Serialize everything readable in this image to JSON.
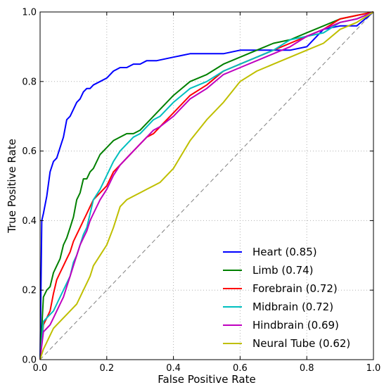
{
  "chart_data": {
    "type": "line",
    "title": "",
    "xlabel": "False Positive Rate",
    "ylabel": "True Positive Rate",
    "xlim": [
      0.0,
      1.0
    ],
    "ylim": [
      0.0,
      1.0
    ],
    "grid": true,
    "grid_style": "dotted",
    "legend_position": "lower-right",
    "x_ticks": [
      {
        "value": 0.0,
        "label": "0.0"
      },
      {
        "value": 0.2,
        "label": "0.2"
      },
      {
        "value": 0.4,
        "label": "0.4"
      },
      {
        "value": 0.6,
        "label": "0.6"
      },
      {
        "value": 0.8,
        "label": "0.8"
      },
      {
        "value": 1.0,
        "label": "1.0"
      }
    ],
    "y_ticks": [
      {
        "value": 0.0,
        "label": "0.0"
      },
      {
        "value": 0.2,
        "label": "0.2"
      },
      {
        "value": 0.4,
        "label": "0.4"
      },
      {
        "value": 0.6,
        "label": "0.6"
      },
      {
        "value": 0.8,
        "label": "0.8"
      },
      {
        "value": 1.0,
        "label": "1.0"
      }
    ],
    "reference_line": {
      "x": [
        0,
        1
      ],
      "y": [
        0,
        1
      ],
      "color": "#808080",
      "style": "dashed"
    },
    "series": [
      {
        "name": "Heart (0.85)",
        "color": "#0000ff",
        "x": [
          0,
          0.005,
          0.01,
          0.02,
          0.03,
          0.04,
          0.05,
          0.06,
          0.07,
          0.08,
          0.09,
          0.1,
          0.11,
          0.12,
          0.13,
          0.14,
          0.15,
          0.16,
          0.18,
          0.2,
          0.22,
          0.24,
          0.26,
          0.28,
          0.3,
          0.32,
          0.35,
          0.4,
          0.45,
          0.5,
          0.55,
          0.6,
          0.65,
          0.7,
          0.75,
          0.8,
          0.85,
          0.9,
          0.95,
          1.0
        ],
        "y": [
          0,
          0.4,
          0.42,
          0.47,
          0.54,
          0.57,
          0.58,
          0.61,
          0.64,
          0.69,
          0.7,
          0.72,
          0.74,
          0.75,
          0.77,
          0.78,
          0.78,
          0.79,
          0.8,
          0.81,
          0.83,
          0.84,
          0.84,
          0.85,
          0.85,
          0.86,
          0.86,
          0.87,
          0.88,
          0.88,
          0.88,
          0.89,
          0.89,
          0.89,
          0.89,
          0.9,
          0.95,
          0.96,
          0.96,
          1.0
        ]
      },
      {
        "name": "Limb (0.74)",
        "color": "#008000",
        "x": [
          0,
          0.01,
          0.02,
          0.03,
          0.04,
          0.05,
          0.06,
          0.07,
          0.08,
          0.09,
          0.1,
          0.11,
          0.12,
          0.13,
          0.14,
          0.15,
          0.16,
          0.18,
          0.2,
          0.22,
          0.24,
          0.26,
          0.28,
          0.3,
          0.32,
          0.34,
          0.36,
          0.4,
          0.45,
          0.5,
          0.55,
          0.6,
          0.65,
          0.7,
          0.75,
          0.8,
          0.85,
          0.9,
          0.95,
          1.0
        ],
        "y": [
          0,
          0.18,
          0.2,
          0.21,
          0.25,
          0.27,
          0.29,
          0.33,
          0.35,
          0.38,
          0.41,
          0.46,
          0.48,
          0.52,
          0.52,
          0.54,
          0.55,
          0.59,
          0.61,
          0.63,
          0.64,
          0.65,
          0.65,
          0.66,
          0.68,
          0.7,
          0.72,
          0.76,
          0.8,
          0.82,
          0.85,
          0.87,
          0.89,
          0.91,
          0.92,
          0.94,
          0.96,
          0.98,
          0.99,
          1.0
        ]
      },
      {
        "name": "Forebrain (0.72)",
        "color": "#ff0000",
        "x": [
          0,
          0.01,
          0.02,
          0.03,
          0.04,
          0.05,
          0.06,
          0.07,
          0.08,
          0.09,
          0.1,
          0.11,
          0.12,
          0.13,
          0.14,
          0.15,
          0.16,
          0.18,
          0.2,
          0.22,
          0.24,
          0.26,
          0.28,
          0.3,
          0.32,
          0.34,
          0.36,
          0.4,
          0.45,
          0.5,
          0.55,
          0.6,
          0.65,
          0.7,
          0.75,
          0.8,
          0.85,
          0.9,
          0.95,
          1.0
        ],
        "y": [
          0,
          0.1,
          0.12,
          0.14,
          0.19,
          0.23,
          0.25,
          0.27,
          0.29,
          0.31,
          0.34,
          0.36,
          0.38,
          0.4,
          0.42,
          0.44,
          0.46,
          0.48,
          0.5,
          0.54,
          0.56,
          0.58,
          0.6,
          0.62,
          0.64,
          0.65,
          0.67,
          0.71,
          0.76,
          0.79,
          0.83,
          0.85,
          0.87,
          0.89,
          0.91,
          0.93,
          0.95,
          0.98,
          0.99,
          1.0
        ]
      },
      {
        "name": "Midbrain (0.72)",
        "color": "#00bfbf",
        "x": [
          0,
          0.01,
          0.02,
          0.03,
          0.04,
          0.05,
          0.06,
          0.07,
          0.08,
          0.09,
          0.1,
          0.11,
          0.12,
          0.13,
          0.14,
          0.15,
          0.16,
          0.18,
          0.2,
          0.22,
          0.24,
          0.26,
          0.28,
          0.3,
          0.32,
          0.34,
          0.36,
          0.4,
          0.45,
          0.5,
          0.55,
          0.6,
          0.65,
          0.7,
          0.75,
          0.8,
          0.85,
          0.9,
          0.95,
          1.0
        ],
        "y": [
          0,
          0.11,
          0.12,
          0.13,
          0.14,
          0.16,
          0.18,
          0.2,
          0.22,
          0.24,
          0.28,
          0.3,
          0.33,
          0.36,
          0.38,
          0.42,
          0.46,
          0.49,
          0.53,
          0.57,
          0.6,
          0.62,
          0.64,
          0.65,
          0.67,
          0.69,
          0.7,
          0.74,
          0.78,
          0.8,
          0.83,
          0.85,
          0.87,
          0.89,
          0.92,
          0.93,
          0.94,
          0.97,
          0.98,
          1.0
        ]
      },
      {
        "name": "Hindbrain (0.69)",
        "color": "#bf00bf",
        "x": [
          0,
          0.01,
          0.02,
          0.03,
          0.04,
          0.05,
          0.06,
          0.07,
          0.08,
          0.09,
          0.1,
          0.11,
          0.12,
          0.13,
          0.14,
          0.15,
          0.16,
          0.18,
          0.2,
          0.22,
          0.24,
          0.26,
          0.28,
          0.3,
          0.32,
          0.34,
          0.36,
          0.4,
          0.45,
          0.5,
          0.55,
          0.6,
          0.65,
          0.7,
          0.75,
          0.8,
          0.85,
          0.9,
          0.95,
          1.0
        ],
        "y": [
          0,
          0.08,
          0.09,
          0.1,
          0.12,
          0.14,
          0.16,
          0.18,
          0.21,
          0.24,
          0.27,
          0.3,
          0.33,
          0.35,
          0.37,
          0.4,
          0.42,
          0.46,
          0.49,
          0.53,
          0.56,
          0.58,
          0.6,
          0.62,
          0.64,
          0.66,
          0.67,
          0.7,
          0.75,
          0.78,
          0.82,
          0.84,
          0.86,
          0.88,
          0.9,
          0.93,
          0.95,
          0.97,
          0.98,
          1.0
        ]
      },
      {
        "name": "Neural Tube (0.62)",
        "color": "#bfbf00",
        "x": [
          0,
          0.01,
          0.02,
          0.03,
          0.04,
          0.05,
          0.06,
          0.07,
          0.08,
          0.09,
          0.1,
          0.11,
          0.12,
          0.13,
          0.14,
          0.15,
          0.16,
          0.18,
          0.2,
          0.22,
          0.24,
          0.26,
          0.28,
          0.3,
          0.32,
          0.34,
          0.36,
          0.4,
          0.45,
          0.5,
          0.55,
          0.6,
          0.65,
          0.7,
          0.75,
          0.8,
          0.85,
          0.9,
          0.95,
          1.0
        ],
        "y": [
          0,
          0.03,
          0.05,
          0.07,
          0.09,
          0.1,
          0.11,
          0.12,
          0.13,
          0.14,
          0.15,
          0.16,
          0.18,
          0.2,
          0.22,
          0.24,
          0.27,
          0.3,
          0.33,
          0.38,
          0.44,
          0.46,
          0.47,
          0.48,
          0.49,
          0.5,
          0.51,
          0.55,
          0.63,
          0.69,
          0.74,
          0.8,
          0.83,
          0.85,
          0.87,
          0.89,
          0.91,
          0.95,
          0.97,
          1.0
        ]
      }
    ]
  }
}
